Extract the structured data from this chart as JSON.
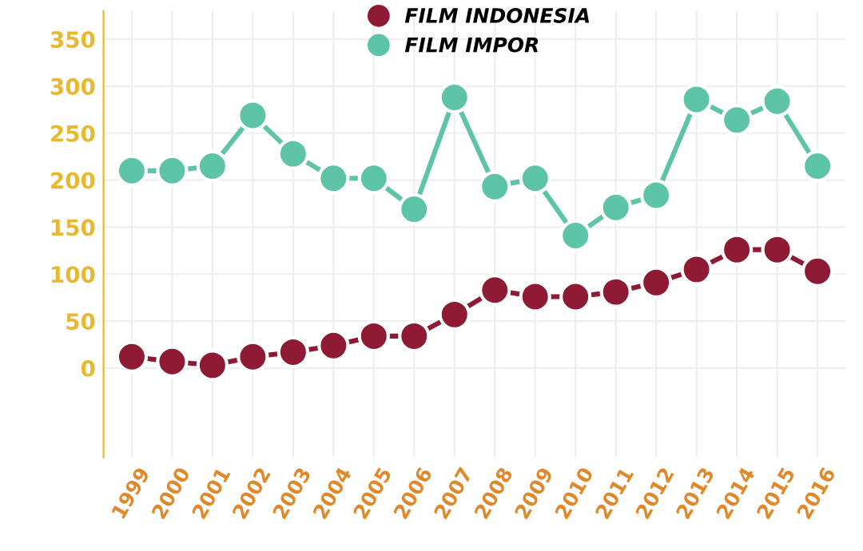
{
  "chart_data": {
    "type": "line",
    "categories": [
      "1999",
      "2000",
      "2001",
      "2002",
      "2003",
      "2004",
      "2005",
      "2006",
      "2007",
      "2008",
      "2009",
      "2010",
      "2011",
      "2012",
      "2013",
      "2014",
      "2015",
      "2016"
    ],
    "series": [
      {
        "name": "FILM INDONESIA",
        "color": "#8e1b33",
        "values": [
          12,
          7,
          3,
          12,
          17,
          24,
          34,
          34,
          57,
          83,
          76,
          76,
          81,
          91,
          105,
          126,
          126,
          103
        ]
      },
      {
        "name": "FILM IMPOR",
        "color": "#5ec4a8",
        "values": [
          210,
          210,
          215,
          269,
          228,
          202,
          202,
          169,
          288,
          193,
          202,
          141,
          171,
          184,
          286,
          264,
          284,
          215
        ]
      }
    ],
    "ylim": [
      -95,
      380
    ],
    "yticks": [
      0,
      50,
      100,
      150,
      200,
      250,
      300,
      350
    ],
    "grid": true,
    "legend": "top",
    "marker": "circle",
    "line_style": "solid"
  }
}
